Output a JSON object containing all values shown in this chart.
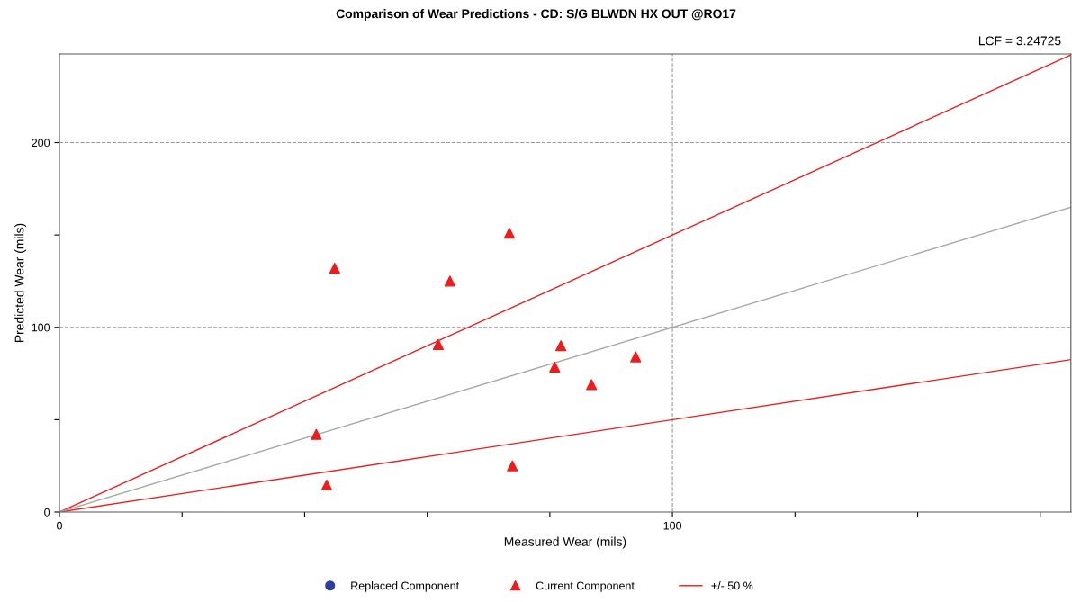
{
  "chart_data": {
    "type": "scatter",
    "title": "Comparison of Wear Predictions - CD: S/G BLWDN HX OUT @RO17",
    "xlabel": "Measured Wear (mils)",
    "ylabel": "Predicted Wear (mils)",
    "annotations": [
      "LCF = 3.24725"
    ],
    "xlim": [
      0,
      165
    ],
    "ylim": [
      0,
      248
    ],
    "xticks": [
      0,
      {
        "value": 20,
        "label": null
      },
      {
        "value": 40,
        "label": null
      },
      {
        "value": 60,
        "label": null
      },
      {
        "value": 80,
        "label": null
      },
      100,
      {
        "value": 120,
        "label": null
      },
      {
        "value": 140,
        "label": null
      },
      {
        "value": 160,
        "label": null
      }
    ],
    "yticks": [
      0,
      {
        "value": 50,
        "label": null
      },
      100,
      {
        "value": 150,
        "label": null
      },
      200
    ],
    "grid": true,
    "legend": "bottom",
    "series": [
      {
        "name": "Replaced Component",
        "color": "#2e3e9e",
        "marker": "circle"
      },
      {
        "name": "Current Component",
        "color": "#ee1c1c",
        "marker": "triangle",
        "x": [
          41.9,
          44.9,
          43.6,
          61.8,
          63.7,
          73.4,
          73.9,
          80.8,
          81.8,
          86.8,
          94.0
        ],
        "values": [
          42,
          132,
          14.6,
          90.7,
          125,
          151,
          25,
          78.5,
          90,
          69,
          84
        ]
      },
      {
        "name": "+/- 50 %",
        "color": "#ee1c1c",
        "type": "line",
        "x": [
          0,
          165
        ],
        "values": [
          0,
          247.5
        ]
      },
      {
        "color": "#ee1c1c",
        "type": "line",
        "x": [
          0,
          165
        ],
        "values": [
          0,
          82.5
        ]
      },
      {
        "color": "#a8a8a8",
        "type": "line",
        "x": [
          0,
          165
        ],
        "values": [
          0,
          165
        ]
      }
    ]
  }
}
